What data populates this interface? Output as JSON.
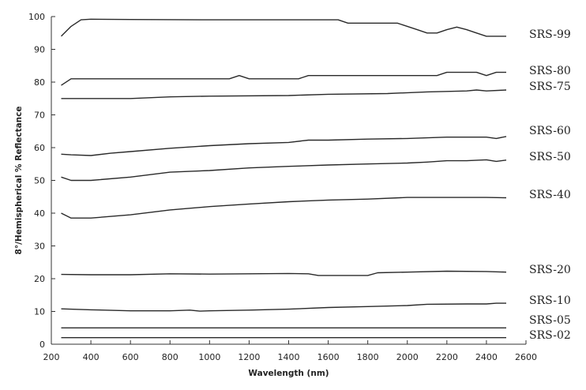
{
  "chart_data": {
    "type": "line",
    "title": "",
    "xlabel": "Wavelength (nm)",
    "ylabel": "8°/Hemispherical % Reflectance",
    "xlim": [
      200,
      2600
    ],
    "ylim": [
      0,
      100
    ],
    "xticks": [
      200,
      400,
      600,
      800,
      1000,
      1200,
      1400,
      1600,
      1800,
      2000,
      2200,
      2400,
      2600
    ],
    "yticks": [
      0,
      10,
      20,
      30,
      40,
      50,
      60,
      70,
      80,
      90,
      100
    ],
    "grid": false,
    "legend": "labels at right end of each line",
    "series": [
      {
        "name": "SRS-99",
        "points": [
          [
            250,
            94
          ],
          [
            300,
            97
          ],
          [
            350,
            99
          ],
          [
            400,
            99.2
          ],
          [
            600,
            99.1
          ],
          [
            1000,
            99
          ],
          [
            1400,
            99
          ],
          [
            1650,
            99
          ],
          [
            1700,
            98
          ],
          [
            1900,
            98
          ],
          [
            1950,
            98
          ],
          [
            2000,
            97
          ],
          [
            2050,
            96
          ],
          [
            2100,
            95
          ],
          [
            2150,
            95
          ],
          [
            2200,
            96
          ],
          [
            2250,
            96.8
          ],
          [
            2300,
            96
          ],
          [
            2350,
            95
          ],
          [
            2400,
            94
          ],
          [
            2500,
            94
          ]
        ]
      },
      {
        "name": "SRS-80",
        "points": [
          [
            250,
            79
          ],
          [
            300,
            81
          ],
          [
            350,
            81
          ],
          [
            600,
            81
          ],
          [
            1000,
            81
          ],
          [
            1100,
            81
          ],
          [
            1150,
            82
          ],
          [
            1200,
            81
          ],
          [
            1450,
            81
          ],
          [
            1500,
            82
          ],
          [
            1700,
            82
          ],
          [
            2000,
            82
          ],
          [
            2150,
            82
          ],
          [
            2200,
            83
          ],
          [
            2350,
            83
          ],
          [
            2400,
            82
          ],
          [
            2450,
            83
          ],
          [
            2500,
            83
          ]
        ]
      },
      {
        "name": "SRS-75",
        "points": [
          [
            250,
            75
          ],
          [
            600,
            75
          ],
          [
            800,
            75.5
          ],
          [
            1000,
            75.7
          ],
          [
            1400,
            75.9
          ],
          [
            1600,
            76.3
          ],
          [
            1900,
            76.5
          ],
          [
            2100,
            77
          ],
          [
            2300,
            77.3
          ],
          [
            2350,
            77.6
          ],
          [
            2400,
            77.3
          ],
          [
            2500,
            77.6
          ]
        ]
      },
      {
        "name": "SRS-60",
        "points": [
          [
            250,
            58
          ],
          [
            300,
            57.8
          ],
          [
            400,
            57.6
          ],
          [
            500,
            58.3
          ],
          [
            600,
            58.8
          ],
          [
            800,
            59.8
          ],
          [
            1000,
            60.6
          ],
          [
            1200,
            61.2
          ],
          [
            1400,
            61.6
          ],
          [
            1500,
            62.3
          ],
          [
            1600,
            62.3
          ],
          [
            1800,
            62.6
          ],
          [
            2000,
            62.8
          ],
          [
            2200,
            63.2
          ],
          [
            2400,
            63.2
          ],
          [
            2450,
            62.8
          ],
          [
            2500,
            63.4
          ]
        ]
      },
      {
        "name": "SRS-50",
        "points": [
          [
            250,
            51
          ],
          [
            300,
            50
          ],
          [
            400,
            50
          ],
          [
            600,
            51
          ],
          [
            800,
            52.5
          ],
          [
            1000,
            53
          ],
          [
            1200,
            53.8
          ],
          [
            1400,
            54.3
          ],
          [
            1600,
            54.7
          ],
          [
            1800,
            55
          ],
          [
            2000,
            55.3
          ],
          [
            2100,
            55.6
          ],
          [
            2200,
            56
          ],
          [
            2300,
            56
          ],
          [
            2400,
            56.3
          ],
          [
            2450,
            55.8
          ],
          [
            2500,
            56.2
          ]
        ]
      },
      {
        "name": "SRS-40",
        "points": [
          [
            250,
            40
          ],
          [
            300,
            38.5
          ],
          [
            400,
            38.5
          ],
          [
            600,
            39.5
          ],
          [
            800,
            41
          ],
          [
            1000,
            42
          ],
          [
            1200,
            42.8
          ],
          [
            1400,
            43.5
          ],
          [
            1600,
            44
          ],
          [
            1800,
            44.3
          ],
          [
            2000,
            44.8
          ],
          [
            2200,
            44.8
          ],
          [
            2400,
            44.8
          ],
          [
            2500,
            44.7
          ]
        ]
      },
      {
        "name": "SRS-20",
        "points": [
          [
            250,
            21.3
          ],
          [
            400,
            21.2
          ],
          [
            600,
            21.2
          ],
          [
            800,
            21.5
          ],
          [
            1000,
            21.4
          ],
          [
            1200,
            21.5
          ],
          [
            1400,
            21.6
          ],
          [
            1500,
            21.5
          ],
          [
            1550,
            21
          ],
          [
            1600,
            21
          ],
          [
            1800,
            21
          ],
          [
            1850,
            21.8
          ],
          [
            2000,
            22
          ],
          [
            2200,
            22.3
          ],
          [
            2400,
            22.2
          ],
          [
            2500,
            22
          ]
        ]
      },
      {
        "name": "SRS-10",
        "points": [
          [
            250,
            10.8
          ],
          [
            400,
            10.5
          ],
          [
            600,
            10.2
          ],
          [
            800,
            10.2
          ],
          [
            900,
            10.4
          ],
          [
            950,
            10.1
          ],
          [
            1000,
            10.2
          ],
          [
            1200,
            10.4
          ],
          [
            1400,
            10.7
          ],
          [
            1600,
            11.2
          ],
          [
            1800,
            11.5
          ],
          [
            2000,
            11.8
          ],
          [
            2100,
            12.2
          ],
          [
            2300,
            12.3
          ],
          [
            2400,
            12.3
          ],
          [
            2450,
            12.5
          ],
          [
            2500,
            12.5
          ]
        ]
      },
      {
        "name": "SRS-05",
        "points": [
          [
            250,
            5
          ],
          [
            2500,
            5
          ]
        ]
      },
      {
        "name": "SRS-02",
        "points": [
          [
            250,
            2
          ],
          [
            2500,
            2
          ]
        ]
      }
    ]
  }
}
